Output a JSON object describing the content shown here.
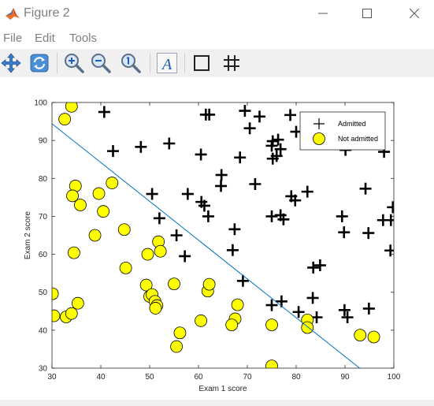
{
  "window": {
    "title": "Figure 2"
  },
  "menu": {
    "items": [
      "File",
      "Edit",
      "Tools"
    ]
  },
  "toolbar": {
    "tools": [
      "pan-icon",
      "rotate-icon",
      "zoom-in-icon",
      "zoom-out-icon",
      "zoom-reset-icon",
      "text-insert-icon",
      "rectangle-icon",
      "grid-icon"
    ]
  },
  "colors": {
    "admitted": "#000000",
    "not_admitted_fill": "#ffff00",
    "decision_boundary": "#0072bd"
  },
  "chart_data": {
    "type": "scatter",
    "xlabel": "Exam 1 score",
    "ylabel": "Exam 2 score",
    "xlim": [
      30,
      100
    ],
    "ylim": [
      30,
      100
    ],
    "xticks": [
      30,
      40,
      50,
      60,
      70,
      80,
      90,
      100
    ],
    "yticks": [
      30,
      40,
      50,
      60,
      70,
      80,
      90,
      100
    ],
    "legend": {
      "placement": "top-right",
      "entries": [
        "Admitted",
        "Not admitted"
      ]
    },
    "series": [
      {
        "name": "Admitted",
        "marker": "plus",
        "points": [
          [
            40.7,
            97.5
          ],
          [
            61.5,
            96.8
          ],
          [
            62.2,
            96.8
          ],
          [
            69.5,
            97.8
          ],
          [
            72.5,
            96.3
          ],
          [
            78.8,
            96.7
          ],
          [
            80.0,
            92.3
          ],
          [
            70.5,
            93.2
          ],
          [
            75.2,
            89.8
          ],
          [
            76.3,
            90.2
          ],
          [
            75.0,
            88.6
          ],
          [
            90.1,
            87.5
          ],
          [
            98.0,
            87.0
          ],
          [
            42.5,
            87.2
          ],
          [
            48.2,
            88.3
          ],
          [
            54.0,
            89.2
          ],
          [
            60.5,
            86.3
          ],
          [
            68.5,
            85.5
          ],
          [
            75.2,
            85.2
          ],
          [
            76.0,
            85.9
          ],
          [
            76.8,
            87.7
          ],
          [
            64.7,
            80.9
          ],
          [
            64.6,
            78.0
          ],
          [
            71.6,
            78.5
          ],
          [
            94.2,
            77.3
          ],
          [
            82.3,
            76.5
          ],
          [
            79.0,
            75.3
          ],
          [
            79.8,
            74.2
          ],
          [
            50.5,
            75.9
          ],
          [
            57.8,
            75.9
          ],
          [
            60.6,
            73.8
          ],
          [
            61.2,
            72.8
          ],
          [
            52.0,
            69.5
          ],
          [
            62.0,
            70.0
          ],
          [
            75.0,
            70.0
          ],
          [
            76.8,
            70.3
          ],
          [
            77.4,
            69.2
          ],
          [
            89.4,
            70.0
          ],
          [
            97.8,
            69.0
          ],
          [
            99.4,
            69.0
          ],
          [
            99.8,
            72.4
          ],
          [
            67.4,
            66.6
          ],
          [
            55.5,
            65.0
          ],
          [
            89.8,
            65.8
          ],
          [
            94.8,
            65.6
          ],
          [
            57.2,
            59.5
          ],
          [
            67.0,
            61.1
          ],
          [
            99.3,
            61.0
          ],
          [
            83.5,
            56.5
          ],
          [
            84.9,
            57.1
          ],
          [
            69.1,
            53.0
          ],
          [
            83.4,
            48.5
          ],
          [
            75.0,
            46.6
          ],
          [
            77.0,
            47.6
          ],
          [
            80.5,
            44.8
          ],
          [
            84.2,
            43.4
          ],
          [
            89.9,
            45.3
          ],
          [
            90.5,
            43.4
          ],
          [
            94.9,
            45.7
          ]
        ]
      },
      {
        "name": "Not admitted",
        "marker": "circle",
        "points": [
          [
            34.0,
            99.0
          ],
          [
            32.6,
            95.6
          ],
          [
            34.8,
            78.0
          ],
          [
            34.2,
            75.4
          ],
          [
            35.8,
            73.0
          ],
          [
            39.6,
            76.0
          ],
          [
            42.3,
            78.8
          ],
          [
            40.5,
            71.3
          ],
          [
            38.8,
            65.0
          ],
          [
            44.8,
            66.5
          ],
          [
            51.8,
            63.3
          ],
          [
            52.2,
            60.8
          ],
          [
            49.6,
            60.0
          ],
          [
            34.5,
            60.4
          ],
          [
            45.1,
            56.4
          ],
          [
            55.0,
            52.2
          ],
          [
            49.3,
            51.9
          ],
          [
            50.0,
            48.9
          ],
          [
            50.5,
            49.4
          ],
          [
            51.1,
            47.6
          ],
          [
            51.5,
            46.5
          ],
          [
            51.2,
            45.8
          ],
          [
            61.9,
            50.3
          ],
          [
            62.2,
            52.1
          ],
          [
            68.0,
            46.7
          ],
          [
            67.5,
            43.0
          ],
          [
            66.8,
            41.4
          ],
          [
            30.1,
            49.6
          ],
          [
            30.4,
            43.8
          ],
          [
            32.9,
            43.5
          ],
          [
            34.0,
            44.4
          ],
          [
            35.3,
            47.1
          ],
          [
            60.5,
            42.5
          ],
          [
            56.2,
            39.3
          ],
          [
            55.5,
            35.7
          ],
          [
            75.0,
            41.4
          ],
          [
            82.3,
            42.7
          ],
          [
            82.3,
            40.7
          ],
          [
            93.1,
            38.7
          ],
          [
            95.9,
            38.2
          ],
          [
            75.0,
            30.6
          ]
        ]
      }
    ],
    "decision_boundary": {
      "name": "Decision boundary",
      "points": [
        [
          30,
          94.4
        ],
        [
          93.0,
          30
        ]
      ]
    }
  }
}
